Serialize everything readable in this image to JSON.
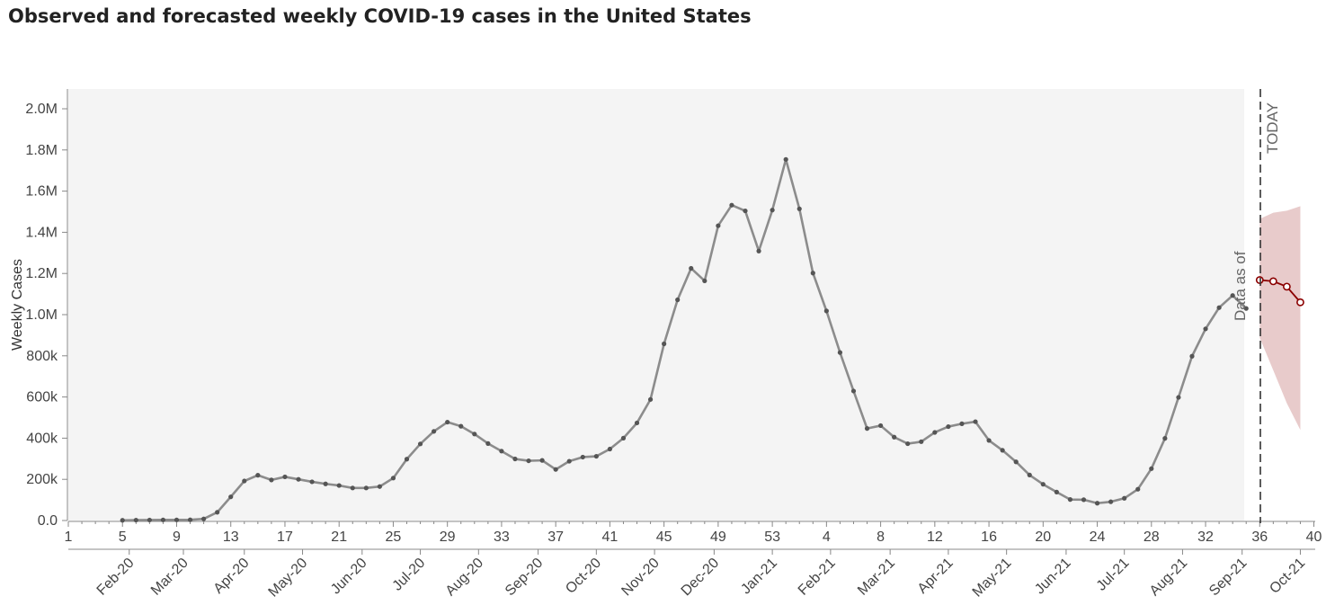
{
  "header": {
    "title": "Observed and forecasted weekly COVID-19 cases in the United States"
  },
  "chart_data": {
    "type": "line",
    "title": "Observed and forecasted weekly COVID-19 cases in the United States",
    "ylabel": "Weekly Cases",
    "ylim": [
      0,
      2100000
    ],
    "y_ticks": [
      {
        "v": 0,
        "label": "0.0"
      },
      {
        "v": 200000,
        "label": "200k"
      },
      {
        "v": 400000,
        "label": "400k"
      },
      {
        "v": 600000,
        "label": "600k"
      },
      {
        "v": 800000,
        "label": "800k"
      },
      {
        "v": 1000000,
        "label": "1.0M"
      },
      {
        "v": 1200000,
        "label": "1.2M"
      },
      {
        "v": 1400000,
        "label": "1.4M"
      },
      {
        "v": 1600000,
        "label": "1.6M"
      },
      {
        "v": 1800000,
        "label": "1.8M"
      },
      {
        "v": 2000000,
        "label": "2.0M"
      }
    ],
    "x_ticks": [
      {
        "i": 0,
        "label": "1"
      },
      {
        "i": 4,
        "label": "5"
      },
      {
        "i": 8,
        "label": "9"
      },
      {
        "i": 12,
        "label": "13"
      },
      {
        "i": 16,
        "label": "17"
      },
      {
        "i": 20,
        "label": "21"
      },
      {
        "i": 24,
        "label": "25"
      },
      {
        "i": 28,
        "label": "29"
      },
      {
        "i": 32,
        "label": "33"
      },
      {
        "i": 36,
        "label": "37"
      },
      {
        "i": 40,
        "label": "41"
      },
      {
        "i": 44,
        "label": "45"
      },
      {
        "i": 48,
        "label": "49"
      },
      {
        "i": 52,
        "label": "53"
      },
      {
        "i": 56,
        "label": "4"
      },
      {
        "i": 60,
        "label": "8"
      },
      {
        "i": 64,
        "label": "12"
      },
      {
        "i": 68,
        "label": "16"
      },
      {
        "i": 72,
        "label": "20"
      },
      {
        "i": 76,
        "label": "24"
      },
      {
        "i": 80,
        "label": "28"
      },
      {
        "i": 84,
        "label": "32"
      },
      {
        "i": 88,
        "label": "36"
      },
      {
        "i": 92,
        "label": "40"
      }
    ],
    "month_labels": [
      {
        "i": 4.5,
        "label": "Feb-20"
      },
      {
        "i": 8.5,
        "label": "Mar-20"
      },
      {
        "i": 13,
        "label": "Apr-20"
      },
      {
        "i": 17.3,
        "label": "May-20"
      },
      {
        "i": 21.7,
        "label": "Jun-20"
      },
      {
        "i": 26,
        "label": "Jul-20"
      },
      {
        "i": 30.3,
        "label": "Aug-20"
      },
      {
        "i": 34.7,
        "label": "Sep-20"
      },
      {
        "i": 39,
        "label": "Oct-20"
      },
      {
        "i": 43.3,
        "label": "Nov-20"
      },
      {
        "i": 47.7,
        "label": "Dec-20"
      },
      {
        "i": 52,
        "label": "Jan-21"
      },
      {
        "i": 56.3,
        "label": "Feb-21"
      },
      {
        "i": 60.7,
        "label": "Mar-21"
      },
      {
        "i": 65,
        "label": "Apr-21"
      },
      {
        "i": 69.3,
        "label": "May-21"
      },
      {
        "i": 73.7,
        "label": "Jun-21"
      },
      {
        "i": 78,
        "label": "Jul-21"
      },
      {
        "i": 82.3,
        "label": "Aug-21"
      },
      {
        "i": 86.7,
        "label": "Sep-21"
      },
      {
        "i": 91,
        "label": "Oct-21"
      }
    ],
    "observed": {
      "start_index": 4,
      "values": [
        1000,
        2000,
        2500,
        3000,
        3000,
        3500,
        8000,
        40000,
        115000,
        192000,
        220000,
        197000,
        212000,
        200000,
        188000,
        178000,
        170000,
        158000,
        158000,
        165000,
        206000,
        298000,
        372000,
        433000,
        478000,
        458000,
        420000,
        374000,
        337000,
        299000,
        290000,
        292000,
        248000,
        288000,
        308000,
        312000,
        347000,
        400000,
        474000,
        588000,
        858000,
        1072000,
        1225000,
        1164000,
        1432000,
        1532000,
        1504000,
        1309000,
        1508000,
        1754000,
        1514000,
        1202000,
        1018000,
        816000,
        629000,
        447000,
        461000,
        405000,
        373000,
        383000,
        428000,
        456000,
        470000,
        480000,
        389000,
        341000,
        285000,
        221000,
        176000,
        138000,
        102000,
        101000,
        84000,
        91000,
        108000,
        152000,
        252000,
        399000,
        598000,
        798000,
        931000,
        1034000,
        1093000,
        1030000
      ]
    },
    "forecast": {
      "start_index": 88,
      "values": [
        1168000,
        1162000,
        1136000,
        1060000
      ],
      "upper": [
        1465000,
        1495000,
        1505000,
        1527000
      ],
      "lower": [
        888000,
        730000,
        570000,
        440000
      ]
    },
    "today_label": "TODAY",
    "data_as_of_label": "Data as of",
    "colors": {
      "observed": "#8c8c8c",
      "observed_marker": "#555555",
      "forecast": "#8b0000",
      "band": "#e6c5c5",
      "panel": "#f4f4f4",
      "today_line": "#333333"
    }
  }
}
